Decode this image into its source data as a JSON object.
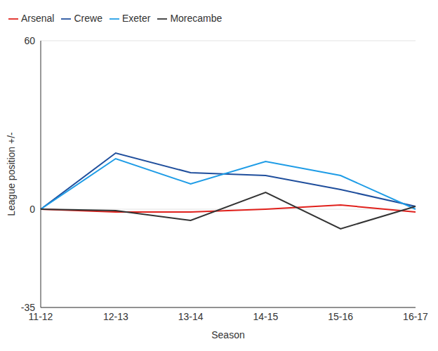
{
  "chart_data": {
    "type": "line",
    "x_label": "Season",
    "y_label": "League position +/-",
    "categories": [
      "11-12",
      "12-13",
      "13-14",
      "14-15",
      "15-16",
      "16-17"
    ],
    "series": [
      {
        "name": "Arsenal",
        "color": "#e0201b",
        "values": [
          0,
          -1,
          -1,
          0,
          1.5,
          -1
        ]
      },
      {
        "name": "Crewe",
        "color": "#1f4e9c",
        "values": [
          0,
          20,
          13,
          12,
          7,
          1
        ]
      },
      {
        "name": "Exeter",
        "color": "#1e9ce6",
        "values": [
          0,
          18,
          9,
          17,
          12,
          0
        ]
      },
      {
        "name": "Morecambe",
        "color": "#333333",
        "values": [
          0,
          -0.5,
          -4,
          6,
          -7,
          1
        ]
      }
    ],
    "ylim": [
      -35,
      60
    ],
    "yticks": [
      -35,
      0,
      60
    ],
    "grid": true,
    "legend": "top-left"
  }
}
